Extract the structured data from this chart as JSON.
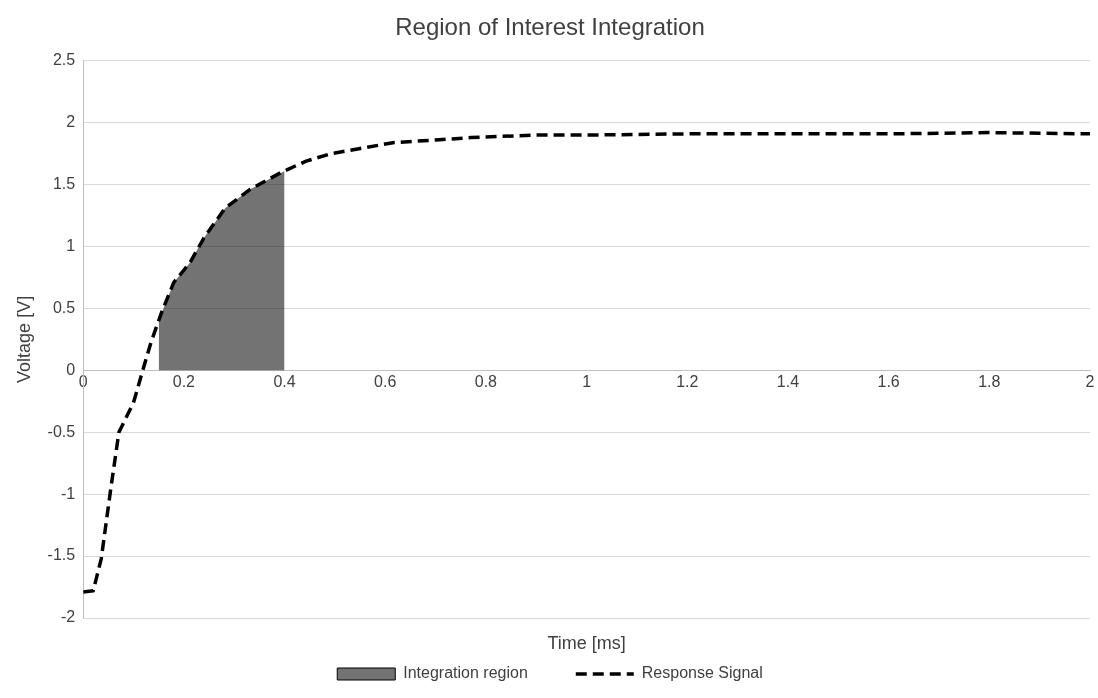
{
  "chart_data": {
    "type": "line",
    "title": "Region of Interest Integration",
    "xlabel": "Time [ms]",
    "ylabel": "Voltage [V]",
    "xlim": [
      0,
      2
    ],
    "xticks": [
      0,
      0.2,
      0.4,
      0.6,
      0.8,
      1,
      1.2,
      1.4,
      1.6,
      1.8,
      2
    ],
    "ylim": [
      -2,
      2.5
    ],
    "yticks": [
      -2,
      -1.5,
      -1,
      -0.5,
      0,
      0.5,
      1,
      1.5,
      2,
      2.5
    ],
    "grid": "y",
    "legend": "bottom",
    "marker": "none",
    "series": [
      {
        "name": "Integration region",
        "type": "area",
        "color": "#000000",
        "x": [
          0.15,
          0.18,
          0.212,
          0.24,
          0.282,
          0.331,
          0.4
        ],
        "values": [
          0.4,
          0.71,
          0.87,
          1.07,
          1.31,
          1.46,
          1.61
        ]
      },
      {
        "name": "Response Signal",
        "line_style": "dashed",
        "color": "#000000",
        "x": [
          0,
          0.02,
          0.036,
          0.054,
          0.071,
          0.1,
          0.117,
          0.135,
          0.156,
          0.18,
          0.212,
          0.24,
          0.282,
          0.331,
          0.394,
          0.443,
          0.492,
          0.548,
          0.618,
          0.7,
          0.77,
          0.9,
          1.0,
          1.2,
          1.4,
          1.6,
          1.8,
          2.0
        ],
        "values": [
          -1.79,
          -1.78,
          -1.52,
          -0.98,
          -0.5,
          -0.26,
          -0.02,
          0.23,
          0.47,
          0.71,
          0.87,
          1.07,
          1.31,
          1.46,
          1.6,
          1.69,
          1.75,
          1.79,
          1.84,
          1.86,
          1.88,
          1.9,
          1.9,
          1.91,
          1.91,
          1.91,
          1.92,
          1.91
        ]
      }
    ]
  }
}
